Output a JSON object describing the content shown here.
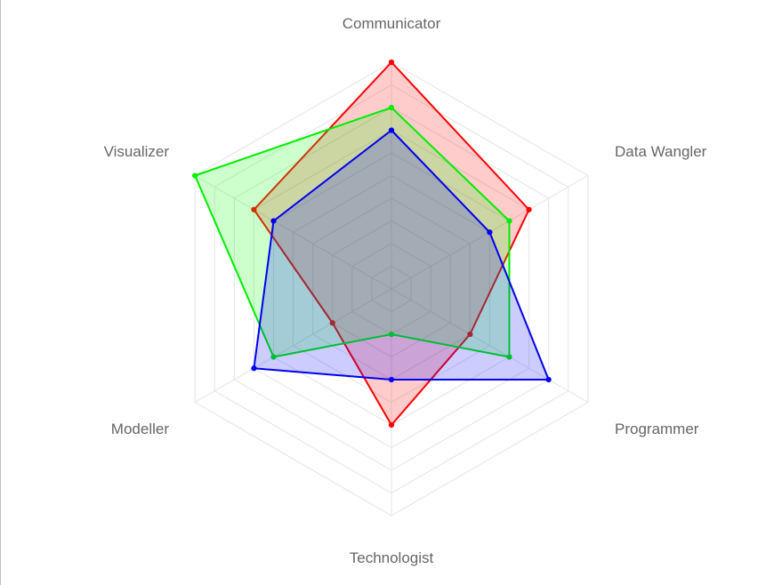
{
  "chart_data": {
    "type": "radar",
    "categories": [
      "Communicator",
      "Data Wangler",
      "Programmer",
      "Technologist",
      "Modeller",
      "Visualizer"
    ],
    "r_range": [
      0,
      10
    ],
    "grid": true,
    "grid_levels": 10,
    "legend": "none",
    "series": [
      {
        "values": [
          10,
          7,
          4,
          6,
          3,
          7
        ],
        "color": "#ff0000",
        "fill": "rgba(255, 0, 0, 0.2)"
      },
      {
        "values": [
          8,
          6,
          6,
          2,
          6,
          10
        ],
        "color": "#00ee00",
        "fill": "rgba(0, 255, 0, 0.2)"
      },
      {
        "values": [
          7,
          5,
          8,
          4,
          7,
          6
        ],
        "color": "#0000ee",
        "fill": "rgba(0, 0, 255, 0.2)"
      }
    ]
  }
}
